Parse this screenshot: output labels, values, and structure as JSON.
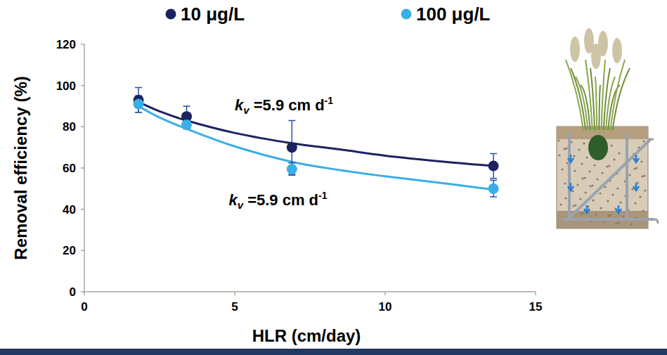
{
  "chart_data": {
    "type": "scatter",
    "xlabel": "HLR (cm/day)",
    "ylabel": "Removal efficiency (%)",
    "xlim": [
      0,
      15
    ],
    "xticks": [
      0,
      5,
      10,
      15
    ],
    "ylim": [
      0,
      120
    ],
    "yticks": [
      0,
      20,
      40,
      60,
      80,
      100,
      120
    ],
    "grid": false,
    "legend": "top",
    "series": [
      {
        "name": "10 μg/L",
        "color": "#1c2260",
        "marker": "circle",
        "x": [
          1.8,
          3.4,
          6.9,
          13.6
        ],
        "values": [
          93,
          85,
          70,
          61
        ],
        "errors": [
          6,
          5,
          13,
          6
        ]
      },
      {
        "name": "100 μg/L",
        "color": "#3aaee6",
        "marker": "circle",
        "x": [
          1.8,
          3.4,
          6.9,
          13.6
        ],
        "values": [
          91,
          81,
          59.5,
          50
        ],
        "errors": [
          4,
          2,
          3,
          4
        ]
      },
      {
        "type": "line",
        "color": "#1c2260",
        "line_style": "solid",
        "x": [
          1.8,
          2.5,
          3.4,
          5,
          6.9,
          8.5,
          10,
          12,
          13.6
        ],
        "values": [
          92,
          87.5,
          83,
          77,
          72,
          69,
          66,
          63,
          61
        ]
      },
      {
        "type": "line",
        "color": "#3aaee6",
        "line_style": "solid",
        "x": [
          1.8,
          2.5,
          3.4,
          5,
          6.9,
          8.5,
          10,
          12,
          13.6
        ],
        "values": [
          90,
          84.5,
          79,
          70.5,
          63,
          59,
          56,
          52.5,
          49.5
        ]
      }
    ],
    "annotations": [
      {
        "text": "k",
        "sub": "v",
        "rest": " =5.9 cm d",
        "sup": "-1",
        "x": 5,
        "y": 88
      },
      {
        "text": "k",
        "sub": "v",
        "rest": " =5.9 cm d",
        "sup": "-1",
        "x": 4.8,
        "y": 42
      }
    ]
  }
}
